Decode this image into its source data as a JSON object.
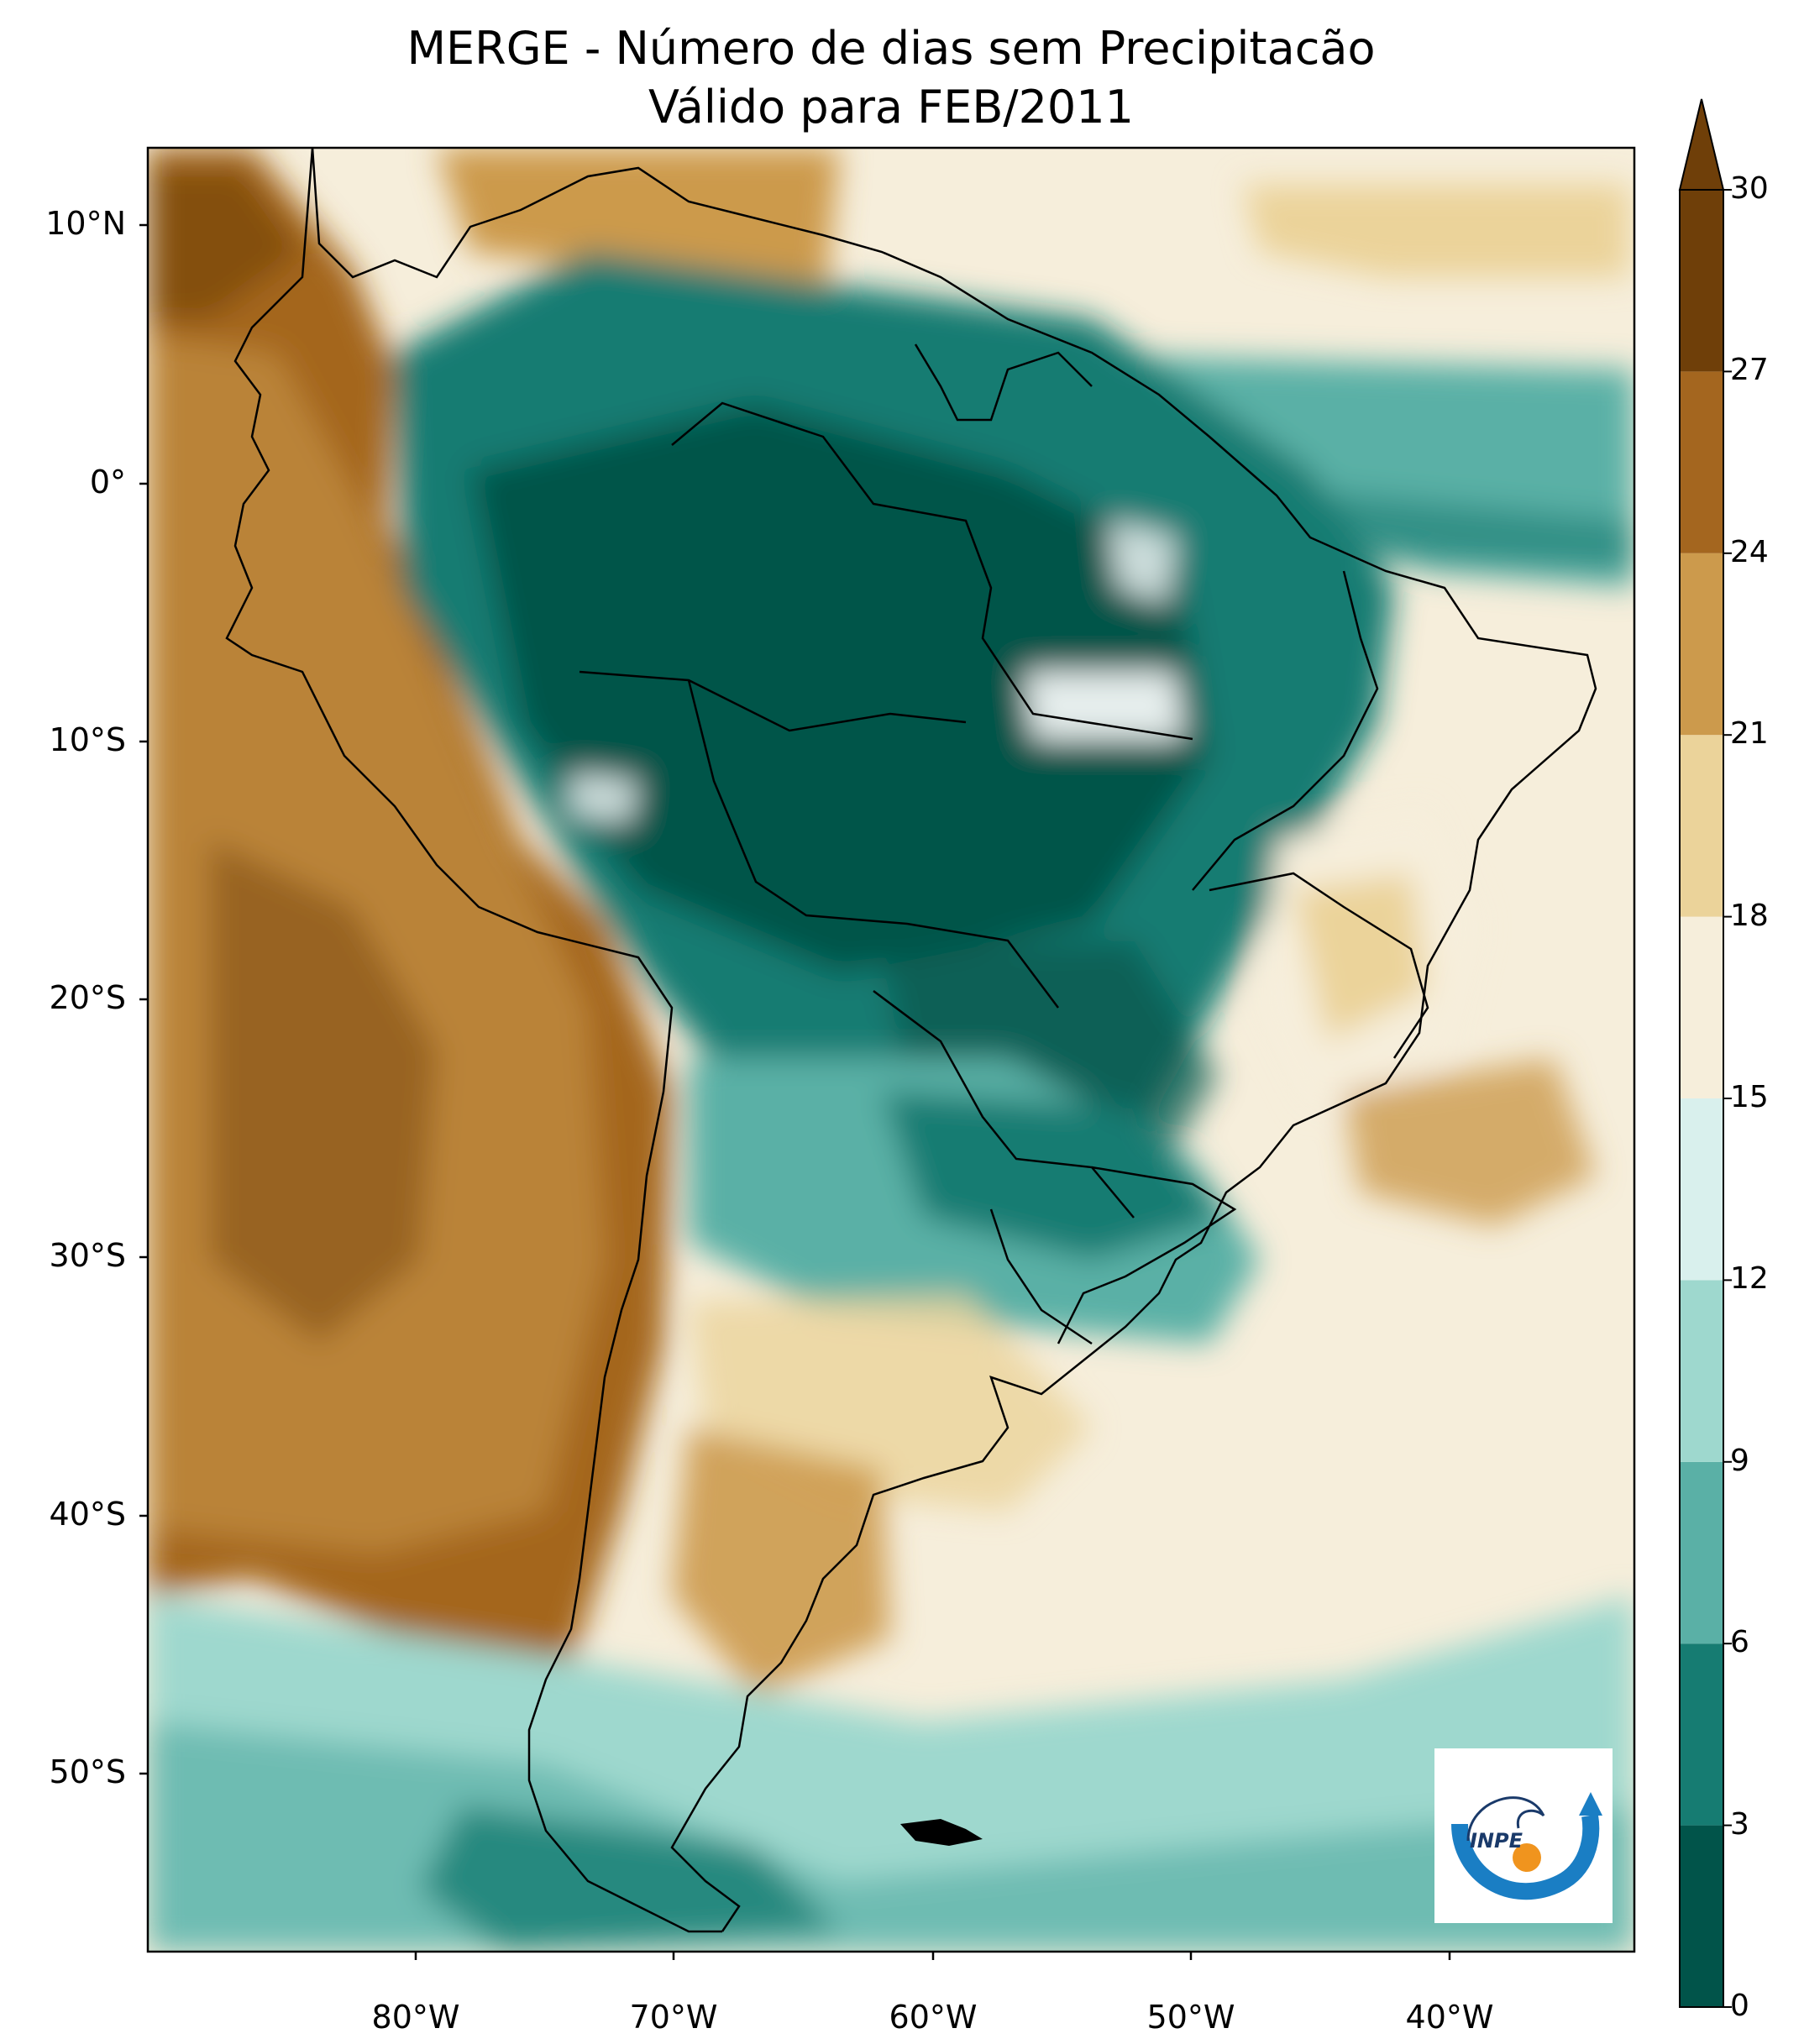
{
  "title": {
    "line1": "MERGE - Número de dias sem Precipitacão",
    "line2": "Válido para FEB/2011"
  },
  "lat_ticks": [
    "10°N",
    "0°",
    "10°S",
    "20°S",
    "30°S",
    "40°S",
    "50°S"
  ],
  "lon_ticks": [
    "80°W",
    "70°W",
    "60°W",
    "50°W",
    "40°W"
  ],
  "colorbar": {
    "levels": [
      "0",
      "3",
      "6",
      "9",
      "12",
      "15",
      "18",
      "21",
      "24",
      "27",
      "30"
    ],
    "colors": [
      "#01544a",
      "#167c72",
      "#5ab0a6",
      "#9ed8ce",
      "#d9f0ed",
      "#f6eedb",
      "#ebd39a",
      "#cc9a4c",
      "#a4661f",
      "#6f3f09"
    ],
    "extend": "max"
  },
  "map": {
    "region": "South America",
    "lon_range": [
      -90,
      -32
    ],
    "lat_range": [
      -56,
      13
    ],
    "background_color": "#f6eedb",
    "legend_logo": "INPE"
  },
  "logo": {
    "text": "INPE"
  }
}
